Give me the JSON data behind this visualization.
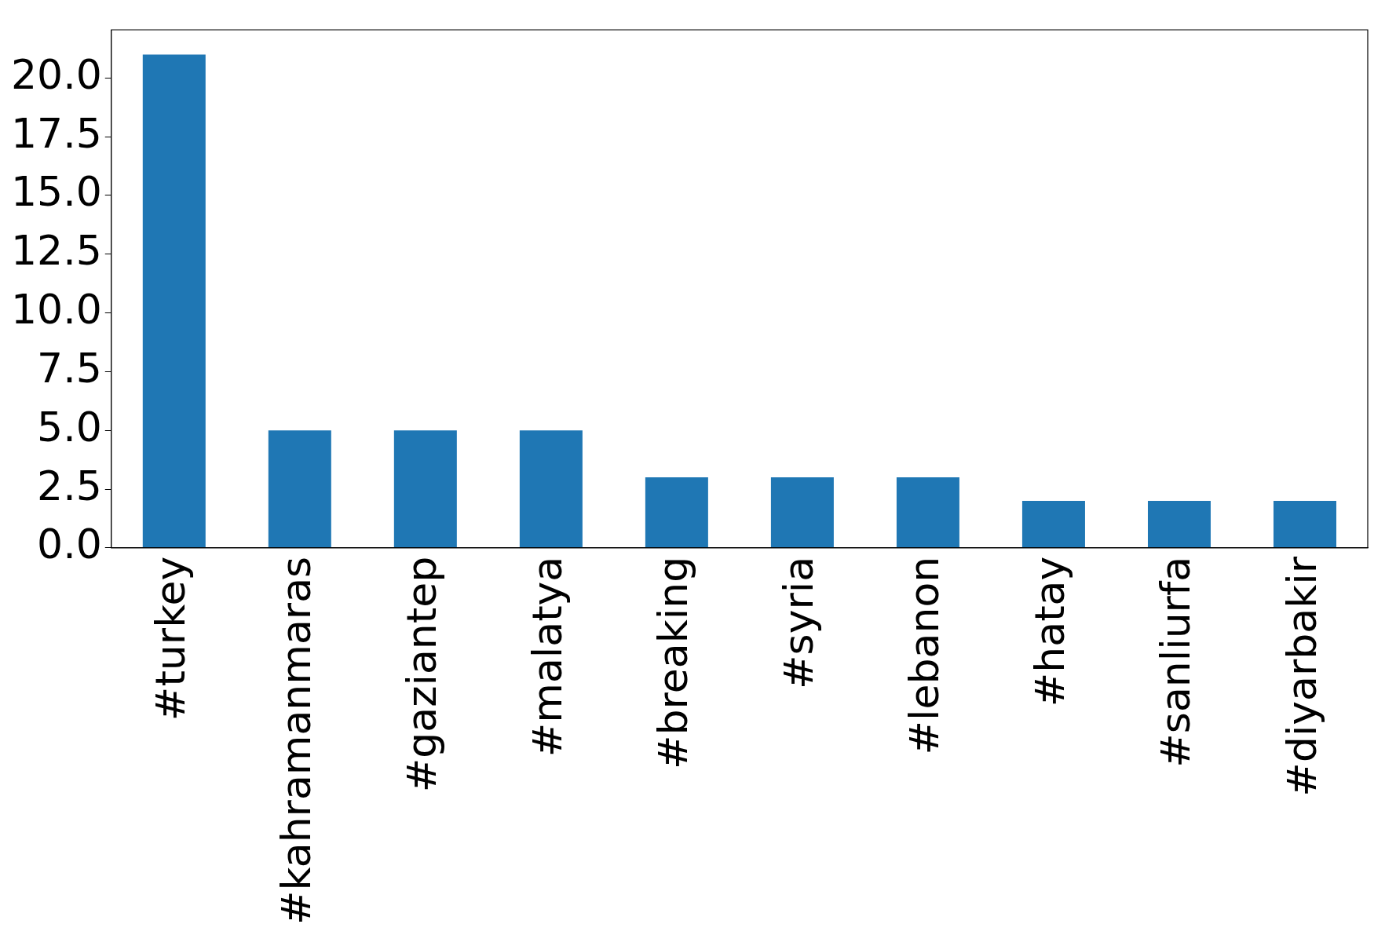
{
  "chart_data": {
    "type": "bar",
    "categories": [
      "#turkey",
      "#kahramanmaras",
      "#gaziantep",
      "#malatya",
      "#breaking",
      "#syria",
      "#lebanon",
      "#hatay",
      "#sanliurfa",
      "#diyarbakir"
    ],
    "values": [
      21,
      5,
      5,
      5,
      3,
      3,
      3,
      2,
      2,
      2
    ],
    "color": "#1f77b4",
    "ylim": [
      0,
      22.05
    ],
    "yticks": [
      {
        "value": 0,
        "label": "0.0"
      },
      {
        "value": 2.5,
        "label": "2.5"
      },
      {
        "value": 5,
        "label": "5.0"
      },
      {
        "value": 7.5,
        "label": "7.5"
      },
      {
        "value": 10,
        "label": "10.0"
      },
      {
        "value": 12.5,
        "label": "12.5"
      },
      {
        "value": 15,
        "label": "15.0"
      },
      {
        "value": 17.5,
        "label": "17.5"
      },
      {
        "value": 20,
        "label": "20.0"
      }
    ],
    "grid": false,
    "legend": false
  }
}
